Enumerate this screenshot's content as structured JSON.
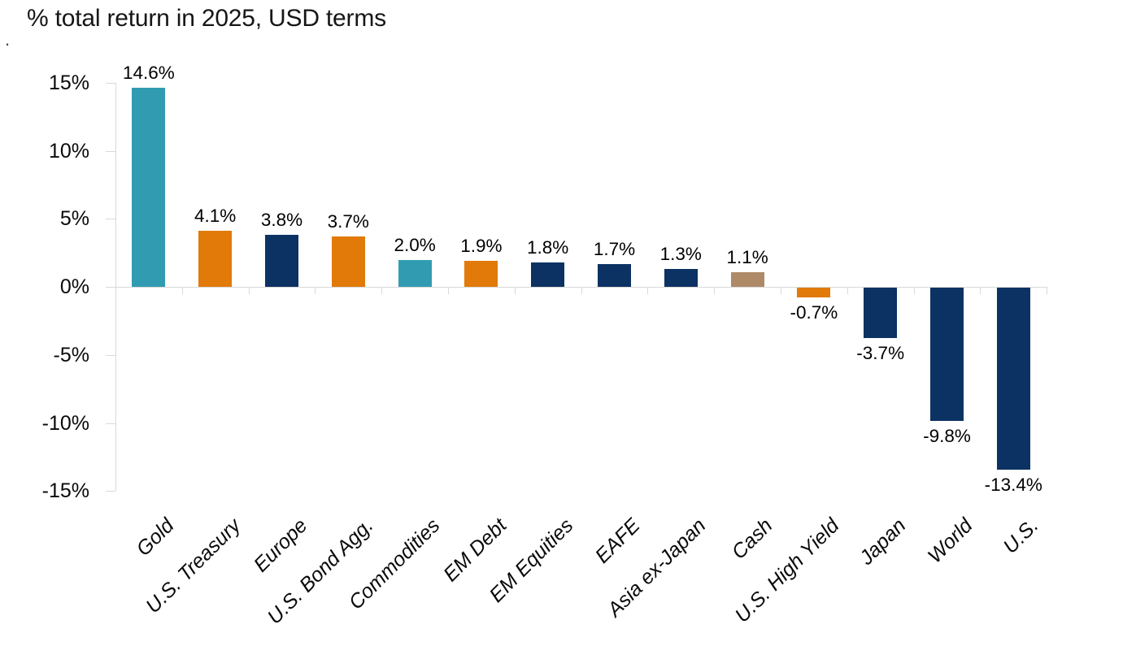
{
  "stray_mark": ".",
  "chart_data": {
    "type": "bar",
    "title": "% total return in 2025, USD terms",
    "xlabel": "",
    "ylabel": "",
    "categories": [
      "Gold",
      "U.S. Treasury",
      "Europe",
      "U.S. Bond Agg.",
      "Commodities",
      "EM Debt",
      "EM Equities",
      "EAFE",
      "Asia ex-Japan",
      "Cash",
      "U.S. High Yield",
      "Japan",
      "World",
      "U.S."
    ],
    "values": [
      14.6,
      4.1,
      3.8,
      3.7,
      2.0,
      1.9,
      1.8,
      1.7,
      1.3,
      1.1,
      -0.7,
      -3.7,
      -9.8,
      -13.4
    ],
    "value_labels": [
      "14.6%",
      "4.1%",
      "3.8%",
      "3.7%",
      "2.0%",
      "1.9%",
      "1.8%",
      "1.7%",
      "1.3%",
      "1.1%",
      "-0.7%",
      "-3.7%",
      "-9.8%",
      "-13.4%"
    ],
    "bar_colors": [
      "#319CB1",
      "#E17A08",
      "#0B3262",
      "#E17A08",
      "#319CB1",
      "#E17A08",
      "#0B3262",
      "#0B3262",
      "#0B3262",
      "#AE8A68",
      "#E17A08",
      "#0B3262",
      "#0B3262",
      "#0B3262"
    ],
    "y_ticks": [
      "15%",
      "10%",
      "5%",
      "0%",
      "-5%",
      "-10%",
      "-15%"
    ],
    "y_tick_values": [
      15,
      10,
      5,
      0,
      -5,
      -10,
      -15
    ],
    "ylim": [
      -15,
      15
    ],
    "grid": false,
    "legend": "none",
    "label_rotation_deg": 45,
    "colors": {
      "teal": "#319CB1",
      "orange": "#E17A08",
      "navy": "#0B3262",
      "tan": "#AE8A68",
      "axis_line": "#D9D9D9",
      "text": "#141414"
    }
  }
}
